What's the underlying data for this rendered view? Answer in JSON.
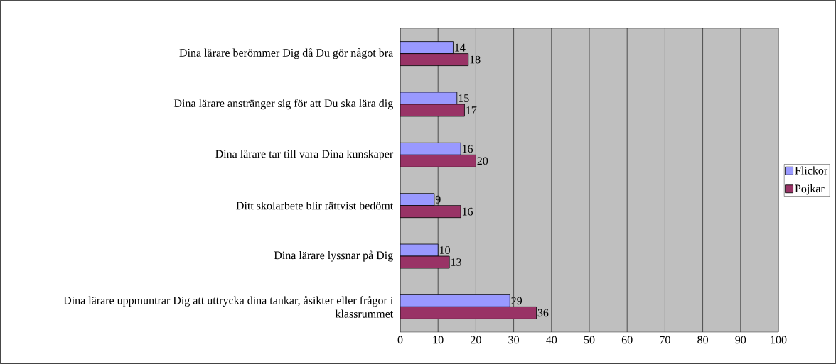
{
  "chart_data": {
    "type": "bar",
    "orientation": "horizontal",
    "categories": [
      "Dina lärare berömmer Dig då Du gör något bra",
      "Dina lärare anstränger sig för att Du ska lära dig",
      "Dina lärare tar till vara Dina kunskaper",
      "Ditt skolarbete blir rättvist bedömt",
      "Dina lärare lyssnar på Dig",
      "Dina lärare uppmuntrar Dig att uttrycka dina tankar, åsikter eller frågor i klassrummet"
    ],
    "series": [
      {
        "name": "Flickor",
        "color": "#9999ff",
        "values": [
          14,
          15,
          16,
          9,
          10,
          29
        ]
      },
      {
        "name": "Pojkar",
        "color": "#993366",
        "values": [
          18,
          17,
          20,
          16,
          13,
          36
        ]
      }
    ],
    "xlim": [
      0,
      100
    ],
    "xticks": [
      0,
      10,
      20,
      30,
      40,
      50,
      60,
      70,
      80,
      90,
      100
    ],
    "grid": "x",
    "legend": "right",
    "data_labels": true
  }
}
